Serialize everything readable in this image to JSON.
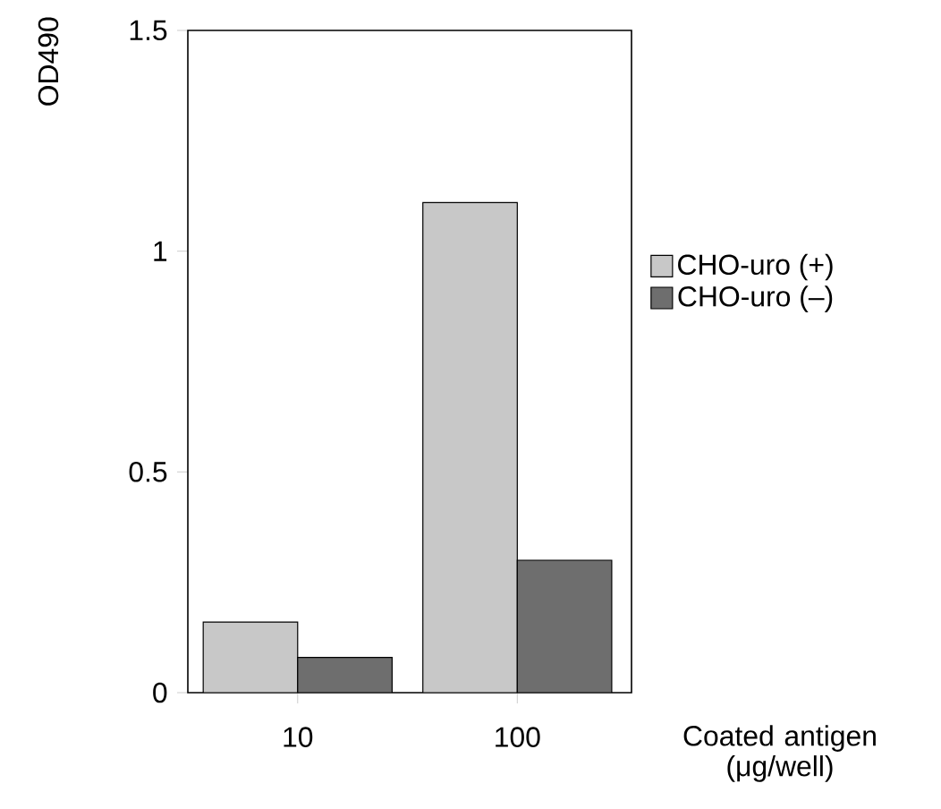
{
  "chart_data": {
    "type": "bar",
    "xlabel": "Coated antigen (μg/well)",
    "ylabel": "OD490",
    "categories": [
      "10",
      "100"
    ],
    "series": [
      {
        "name": "CHO-uro (+)",
        "color": "#c8c8c8",
        "values": [
          0.16,
          1.11
        ]
      },
      {
        "name": "CHO-uro (–)",
        "color": "#6e6e6e",
        "values": [
          0.08,
          0.3
        ]
      }
    ],
    "ylim": [
      0,
      1.5
    ],
    "yticks": [
      0,
      0.5,
      1,
      1.5
    ],
    "legend": "right"
  }
}
